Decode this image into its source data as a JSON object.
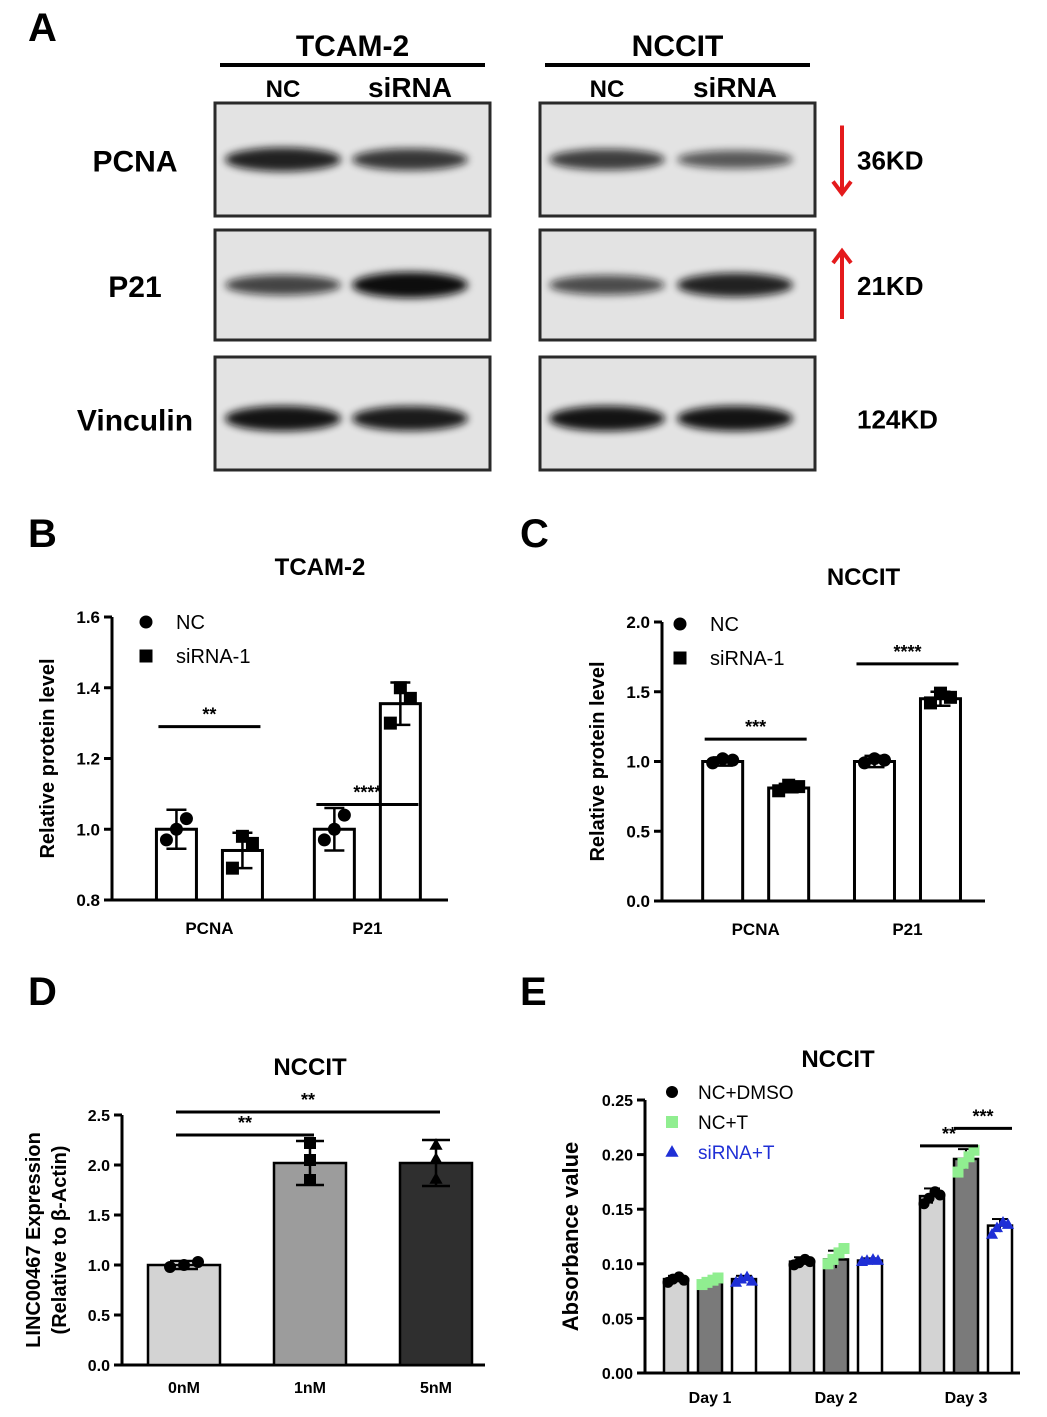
{
  "panels": {
    "A": "A",
    "B": "B",
    "C": "C",
    "D": "D",
    "E": "E"
  },
  "blot": {
    "cell_lines": [
      {
        "name": "TCAM-2",
        "lanes": [
          "NC",
          "siRNA"
        ]
      },
      {
        "name": "NCCIT",
        "lanes": [
          "NC",
          "siRNA"
        ]
      }
    ],
    "rows": [
      {
        "protein": "PCNA",
        "size": "36KD",
        "arrow": "down",
        "arrow_color": "#e41a1c",
        "bands": [
          [
            0.85,
            0.7
          ],
          [
            0.65,
            0.45
          ]
        ]
      },
      {
        "protein": "P21",
        "size": "21KD",
        "arrow": "up",
        "arrow_color": "#e41a1c",
        "bands": [
          [
            0.6,
            1.0
          ],
          [
            0.55,
            0.85
          ]
        ]
      },
      {
        "protein": "Vinculin",
        "size": "124KD",
        "arrow": null,
        "bands": [
          [
            0.95,
            0.9
          ],
          [
            0.95,
            0.95
          ]
        ]
      }
    ]
  },
  "chart_data": [
    {
      "id": "B",
      "type": "bar",
      "title": "TCAM-2",
      "ylabel": "Relative protein level",
      "xlabel": "",
      "ylim": [
        0.8,
        1.6
      ],
      "yticks": [
        "0.8",
        "1.0",
        "1.2",
        "1.4",
        "1.6"
      ],
      "categories": [
        "PCNA",
        "P21"
      ],
      "series": [
        {
          "name": "NC",
          "marker": "circle",
          "values": [
            1.0,
            1.0
          ],
          "err": [
            0.055,
            0.06
          ],
          "points": [
            [
              0.97,
              1.03,
              1.0
            ],
            [
              0.97,
              1.04,
              1.0
            ]
          ]
        },
        {
          "name": "siRNA-1",
          "marker": "square",
          "values": [
            0.94,
            1.355
          ],
          "err": [
            0.05,
            0.06
          ],
          "points": [
            [
              0.89,
              0.96,
              0.98
            ],
            [
              1.3,
              1.37,
              1.4
            ]
          ]
        }
      ],
      "significance": [
        {
          "category": "PCNA",
          "label": "**",
          "y": 1.29
        },
        {
          "category": "P21",
          "label": "****",
          "y": 1.07
        }
      ]
    },
    {
      "id": "C",
      "type": "bar",
      "title": "NCCIT",
      "ylabel": "Relative protein level",
      "xlabel": "",
      "ylim": [
        0.0,
        2.0
      ],
      "yticks": [
        "0.0",
        "0.5",
        "1.0",
        "1.5",
        "2.0"
      ],
      "categories": [
        "PCNA",
        "P21"
      ],
      "series": [
        {
          "name": "NC",
          "marker": "circle",
          "values": [
            1.0,
            1.0
          ],
          "err": [
            0.03,
            0.04
          ],
          "points": [
            [
              0.99,
              1.01,
              1.02
            ],
            [
              0.99,
              1.01,
              1.02
            ]
          ]
        },
        {
          "name": "siRNA-1",
          "marker": "square",
          "values": [
            0.81,
            1.45
          ],
          "err": [
            0.03,
            0.05
          ],
          "points": [
            [
              0.79,
              0.82,
              0.83
            ],
            [
              1.42,
              1.46,
              1.49
            ]
          ]
        }
      ],
      "significance": [
        {
          "category": "PCNA",
          "label": "***",
          "y": 1.16
        },
        {
          "category": "P21",
          "label": "****",
          "y": 1.7
        }
      ]
    },
    {
      "id": "D",
      "type": "bar",
      "title": "NCCIT",
      "ylabel": "LINC00467 Expression (Relative to β-Actin)",
      "ylabel_lines": [
        "LINC00467 Expression",
        "(Relative to β-Actin)"
      ],
      "xlabel": "",
      "ylim": [
        0.0,
        2.5
      ],
      "yticks": [
        "0.0",
        "0.5",
        "1.0",
        "1.5",
        "2.0",
        "2.5"
      ],
      "categories": [
        "0nM",
        "1nM",
        "5nM"
      ],
      "values": [
        1.0,
        2.02,
        2.02
      ],
      "err": [
        0.04,
        0.22,
        0.23
      ],
      "colors": [
        "#d3d3d3",
        "#9c9c9c",
        "#2f2f2f"
      ],
      "points": [
        [
          0.98,
          1.0,
          1.03
        ],
        [
          1.85,
          2.05,
          2.22
        ],
        [
          1.86,
          2.06,
          2.2
        ]
      ],
      "markers": [
        "circle",
        "square",
        "triangle"
      ],
      "significance": [
        {
          "from": 0,
          "to": 1,
          "label": "**",
          "y": 2.3
        },
        {
          "from": 0,
          "to": 2,
          "label": "**",
          "y": 2.53
        }
      ]
    },
    {
      "id": "E",
      "type": "bar",
      "title": "NCCIT",
      "ylabel": "Absorbance value",
      "xlabel": "",
      "ylim": [
        0.0,
        0.25
      ],
      "yticks": [
        "0.00",
        "0.05",
        "0.10",
        "0.15",
        "0.20",
        "0.25"
      ],
      "categories": [
        "Day 1",
        "Day 2",
        "Day 3"
      ],
      "series": [
        {
          "name": "NC+DMSO",
          "marker": "circle",
          "marker_color": "#000000",
          "bar_color": "#d3d3d3",
          "values": [
            0.086,
            0.102,
            0.162
          ],
          "err": [
            0.003,
            0.004,
            0.007
          ],
          "points": [
            [
              0.083,
              0.086,
              0.088,
              0.085
            ],
            [
              0.099,
              0.101,
              0.104,
              0.102
            ],
            [
              0.155,
              0.16,
              0.166,
              0.163
            ]
          ]
        },
        {
          "name": "NC+T",
          "marker": "square",
          "marker_color": "#90ee90",
          "bar_color": "#7a7a7a",
          "values": [
            0.083,
            0.104,
            0.196
          ],
          "err": [
            0.004,
            0.008,
            0.009
          ],
          "points": [
            [
              0.081,
              0.083,
              0.085,
              0.087
            ],
            [
              0.1,
              0.104,
              0.11,
              0.114
            ],
            [
              0.184,
              0.192,
              0.198,
              0.204
            ]
          ]
        },
        {
          "name": "siRNA+T",
          "marker": "triangle",
          "marker_color": "#1f2fd6",
          "bar_color": "#ffffff",
          "values": [
            0.086,
            0.103,
            0.135
          ],
          "err": [
            0.003,
            0.002,
            0.006
          ],
          "points": [
            [
              0.083,
              0.086,
              0.088,
              0.084
            ],
            [
              0.102,
              0.103,
              0.104,
              0.103
            ],
            [
              0.127,
              0.133,
              0.138,
              0.136
            ]
          ]
        }
      ],
      "significance": [
        {
          "group": 2,
          "from": 0,
          "to": 1,
          "label": "**",
          "y": 0.208
        },
        {
          "group": 2,
          "from": 1,
          "to": 2,
          "label": "***",
          "y": 0.224
        }
      ]
    }
  ]
}
